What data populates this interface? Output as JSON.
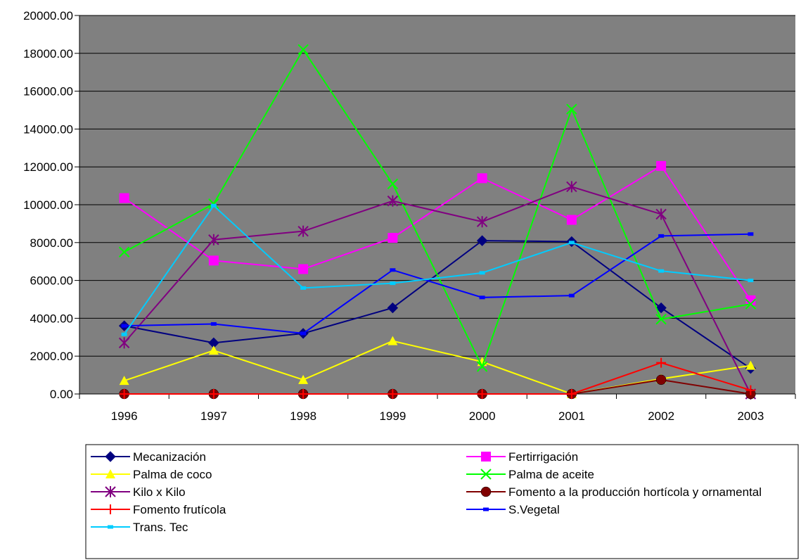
{
  "chart_data": {
    "type": "line",
    "title": "",
    "xlabel": "",
    "ylabel": "",
    "categories": [
      "1996",
      "1997",
      "1998",
      "1999",
      "2000",
      "2001",
      "2002",
      "2003"
    ],
    "ylim": [
      0,
      20000
    ],
    "yticks": [
      "0.00",
      "2000.00",
      "4000.00",
      "6000.00",
      "8000.00",
      "10000.00",
      "12000.00",
      "14000.00",
      "16000.00",
      "18000.00",
      "20000.00"
    ],
    "grid": "horizontal",
    "plot_background": "#808080",
    "legend_position": "bottom",
    "series": [
      {
        "name": "Mecanización",
        "color": "#000080",
        "marker": "diamond",
        "values": [
          3600,
          2700,
          3200,
          4550,
          8100,
          8050,
          4550,
          1350
        ]
      },
      {
        "name": "Fertirrigación",
        "color": "#FF00FF",
        "marker": "square",
        "values": [
          10350,
          7050,
          6600,
          8250,
          11400,
          9200,
          12050,
          4950
        ]
      },
      {
        "name": "Palma de coco",
        "color": "#FFFF00",
        "marker": "triangle",
        "values": [
          700,
          2300,
          750,
          2800,
          1700,
          0,
          800,
          1500
        ]
      },
      {
        "name": "Palma de aceite",
        "color": "#00FF00",
        "marker": "x",
        "values": [
          7500,
          10050,
          18200,
          11100,
          1450,
          15050,
          3950,
          4750
        ]
      },
      {
        "name": "Kilo x Kilo",
        "color": "#800080",
        "marker": "star",
        "values": [
          2700,
          8150,
          8600,
          10200,
          9100,
          10950,
          9500,
          0
        ]
      },
      {
        "name": "Fomento a la producción hortícola y ornamental",
        "color": "#800000",
        "marker": "circle",
        "values": [
          0,
          0,
          0,
          0,
          0,
          0,
          750,
          0
        ]
      },
      {
        "name": "Fomento frutícola",
        "color": "#FF0000",
        "marker": "plus",
        "values": [
          0,
          0,
          0,
          0,
          0,
          0,
          1650,
          200
        ]
      },
      {
        "name": "S.Vegetal",
        "color": "#0000FF",
        "marker": "dash",
        "values": [
          3600,
          3700,
          3200,
          6550,
          5100,
          5200,
          8350,
          8450
        ]
      },
      {
        "name": "Trans. Tec",
        "color": "#00CCFF",
        "marker": "dash",
        "values": [
          3150,
          9950,
          5600,
          5850,
          6400,
          8000,
          6500,
          6000
        ]
      }
    ]
  }
}
